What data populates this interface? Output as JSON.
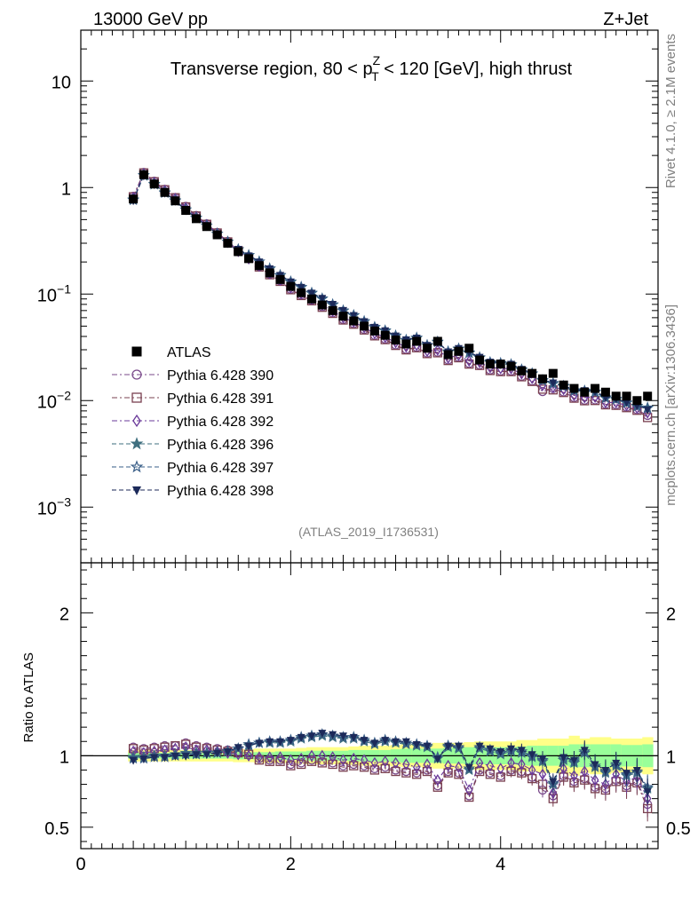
{
  "header": {
    "energy_label": "13000 GeV pp",
    "process_label": "Z+Jet",
    "rivet_label": "Rivet 4.1.0, ≥ 2.1M events",
    "mcplots_label": "mcplots.cern.ch [arXiv:1306.3436]",
    "analysis_label": "(ATLAS_2019_I1736531)"
  },
  "chart_data": [
    {
      "type": "scatter",
      "title": "Transverse region, 80 < p_T^Z < 120 [GeV], high thrust",
      "title_parts": {
        "pre": "Transverse region, 80 < p",
        "sup": "Z",
        "sub": "T",
        "post": " < 120 [GeV], high thrust"
      },
      "yscale": "log",
      "ylim": [
        0.0003,
        30
      ],
      "xlim": [
        0,
        5.5
      ],
      "ytick_labels": [
        {
          "value": 10,
          "label": "10"
        },
        {
          "value": 1,
          "label": "1"
        },
        {
          "value": 0.1,
          "base": "10",
          "exp": "−1"
        },
        {
          "value": 0.01,
          "base": "10",
          "exp": "−2"
        },
        {
          "value": 0.001,
          "base": "10",
          "exp": "−3"
        }
      ],
      "x": [
        0.5,
        0.6,
        0.7,
        0.8,
        0.9,
        1.0,
        1.1,
        1.2,
        1.3,
        1.4,
        1.5,
        1.6,
        1.7,
        1.8,
        1.9,
        2.0,
        2.1,
        2.2,
        2.3,
        2.4,
        2.5,
        2.6,
        2.7,
        2.8,
        2.9,
        3.0,
        3.1,
        3.2,
        3.3,
        3.4,
        3.5,
        3.6,
        3.7,
        3.8,
        3.9,
        4.0,
        4.1,
        4.2,
        4.3,
        4.4,
        4.5,
        4.6,
        4.7,
        4.8,
        4.9,
        5.0,
        5.1,
        5.2,
        5.3,
        5.4
      ],
      "series": [
        {
          "name": "ATLAS",
          "marker": "square-filled",
          "color": "#000000",
          "values": [
            0.78,
            1.32,
            1.08,
            0.9,
            0.75,
            0.61,
            0.51,
            0.43,
            0.36,
            0.3,
            0.25,
            0.215,
            0.185,
            0.158,
            0.137,
            0.118,
            0.103,
            0.09,
            0.079,
            0.07,
            0.062,
            0.056,
            0.05,
            0.045,
            0.041,
            0.037,
            0.034,
            0.036,
            0.031,
            0.036,
            0.027,
            0.029,
            0.031,
            0.024,
            0.022,
            0.022,
            0.021,
            0.019,
            0.018,
            0.016,
            0.018,
            0.014,
            0.013,
            0.012,
            0.013,
            0.012,
            0.011,
            0.011,
            0.01,
            0.011
          ]
        },
        {
          "name": "Pythia 6.428 390",
          "marker": "circle-open",
          "color": "#7a4a8a"
        },
        {
          "name": "Pythia 6.428 391",
          "marker": "square-open",
          "color": "#7a4050"
        },
        {
          "name": "Pythia 6.428 392",
          "marker": "diamond-open",
          "color": "#6a3a9a"
        },
        {
          "name": "Pythia 6.428 396",
          "marker": "star-filled",
          "color": "#3f6f7f"
        },
        {
          "name": "Pythia 6.428 397",
          "marker": "star-open",
          "color": "#3a5f88"
        },
        {
          "name": "Pythia 6.428 398",
          "marker": "triangle-down-filled",
          "color": "#1c2a5a"
        }
      ]
    },
    {
      "type": "scatter",
      "ylabel": "Ratio to ATLAS",
      "ylim": [
        0.35,
        2.35
      ],
      "xlim": [
        0,
        5.5
      ],
      "xtick_labels": [
        "0",
        "2",
        "4"
      ],
      "ytick_labels_left": [
        "0.5",
        "1",
        "2"
      ],
      "ytick_labels_right": [
        "0.5",
        "1",
        "2"
      ],
      "reference_line": 1,
      "band_yellow_halfwidth": [
        0.04,
        0.04,
        0.04,
        0.04,
        0.04,
        0.04,
        0.04,
        0.04,
        0.04,
        0.04,
        0.045,
        0.045,
        0.05,
        0.05,
        0.05,
        0.05,
        0.055,
        0.06,
        0.06,
        0.06,
        0.06,
        0.065,
        0.07,
        0.07,
        0.07,
        0.075,
        0.08,
        0.08,
        0.08,
        0.09,
        0.09,
        0.09,
        0.095,
        0.1,
        0.1,
        0.1,
        0.1,
        0.11,
        0.11,
        0.12,
        0.12,
        0.12,
        0.14,
        0.12,
        0.13,
        0.13,
        0.12,
        0.12,
        0.12,
        0.13
      ],
      "band_green_halfwidth": [
        0.02,
        0.02,
        0.02,
        0.02,
        0.02,
        0.02,
        0.02,
        0.02,
        0.02,
        0.02,
        0.025,
        0.025,
        0.025,
        0.025,
        0.03,
        0.03,
        0.03,
        0.035,
        0.035,
        0.035,
        0.035,
        0.04,
        0.04,
        0.04,
        0.04,
        0.045,
        0.05,
        0.05,
        0.05,
        0.05,
        0.055,
        0.055,
        0.06,
        0.06,
        0.06,
        0.06,
        0.06,
        0.065,
        0.07,
        0.07,
        0.07,
        0.07,
        0.08,
        0.08,
        0.08,
        0.08,
        0.08,
        0.075,
        0.075,
        0.08
      ],
      "series": [
        {
          "name": "Pythia 6.428 390",
          "values": [
            1.06,
            1.05,
            1.06,
            1.07,
            1.07,
            1.09,
            1.07,
            1.06,
            1.05,
            1.04,
            1.03,
            1.02,
            0.98,
            0.97,
            0.97,
            0.94,
            0.95,
            0.97,
            0.96,
            0.95,
            0.93,
            0.94,
            0.93,
            0.91,
            0.92,
            0.9,
            0.89,
            0.88,
            0.9,
            0.79,
            0.89,
            0.88,
            0.72,
            0.9,
            0.88,
            0.86,
            0.9,
            0.89,
            0.85,
            0.76,
            0.72,
            0.86,
            0.82,
            0.84,
            0.78,
            0.77,
            0.83,
            0.79,
            0.82,
            0.66
          ]
        },
        {
          "name": "Pythia 6.428 391",
          "values": [
            1.05,
            1.04,
            1.05,
            1.06,
            1.07,
            1.08,
            1.06,
            1.05,
            1.04,
            1.03,
            1.02,
            1.01,
            0.97,
            0.96,
            0.96,
            0.93,
            0.94,
            0.96,
            0.95,
            0.94,
            0.92,
            0.93,
            0.92,
            0.9,
            0.91,
            0.89,
            0.88,
            0.87,
            0.89,
            0.78,
            0.88,
            0.87,
            0.71,
            0.89,
            0.87,
            0.85,
            0.89,
            0.88,
            0.84,
            0.8,
            0.7,
            0.85,
            0.81,
            0.83,
            0.77,
            0.76,
            0.82,
            0.78,
            0.81,
            0.63
          ]
        },
        {
          "name": "Pythia 6.428 392",
          "values": [
            1.03,
            1.02,
            1.03,
            1.04,
            1.05,
            1.06,
            1.04,
            1.04,
            1.03,
            1.02,
            1.01,
            1.0,
            0.99,
            0.99,
            0.99,
            0.97,
            0.98,
            1.0,
            1.0,
            0.99,
            0.97,
            0.98,
            0.97,
            0.95,
            0.96,
            0.95,
            0.94,
            0.92,
            0.94,
            0.83,
            0.93,
            0.92,
            0.76,
            0.95,
            0.93,
            0.91,
            0.95,
            0.94,
            0.9,
            0.87,
            0.74,
            0.91,
            0.86,
            0.89,
            0.83,
            0.8,
            0.87,
            0.82,
            0.85,
            0.7
          ]
        },
        {
          "name": "Pythia 6.428 396",
          "values": [
            0.99,
            0.99,
            1.0,
            1.0,
            1.01,
            1.02,
            1.02,
            1.02,
            1.02,
            1.03,
            1.05,
            1.07,
            1.09,
            1.09,
            1.09,
            1.1,
            1.12,
            1.13,
            1.14,
            1.13,
            1.12,
            1.12,
            1.1,
            1.08,
            1.1,
            1.09,
            1.08,
            1.07,
            1.06,
            0.98,
            1.06,
            1.05,
            0.9,
            1.05,
            1.03,
            1.01,
            1.03,
            1.02,
            0.99,
            0.96,
            0.8,
            0.97,
            0.95,
            1.02,
            0.92,
            0.88,
            0.93,
            0.86,
            0.88,
            0.77
          ]
        },
        {
          "name": "Pythia 6.428 397",
          "values": [
            0.98,
            0.98,
            0.99,
            0.99,
            1.0,
            1.01,
            1.01,
            1.02,
            1.02,
            1.03,
            1.05,
            1.08,
            1.09,
            1.1,
            1.1,
            1.11,
            1.13,
            1.14,
            1.15,
            1.14,
            1.13,
            1.13,
            1.11,
            1.09,
            1.11,
            1.1,
            1.09,
            1.08,
            1.07,
            0.99,
            1.07,
            1.06,
            0.91,
            1.06,
            1.04,
            1.02,
            1.04,
            1.03,
            1.0,
            0.97,
            0.81,
            0.98,
            0.96,
            1.03,
            0.93,
            0.89,
            0.94,
            0.87,
            0.89,
            0.78
          ]
        },
        {
          "name": "Pythia 6.428 398",
          "values": [
            0.97,
            0.98,
            0.99,
            0.99,
            1.0,
            1.0,
            1.01,
            1.01,
            1.02,
            1.03,
            1.06,
            1.07,
            1.09,
            1.1,
            1.1,
            1.11,
            1.13,
            1.14,
            1.16,
            1.15,
            1.14,
            1.13,
            1.11,
            1.09,
            1.11,
            1.1,
            1.1,
            1.08,
            1.07,
            0.98,
            1.07,
            1.07,
            0.92,
            1.07,
            1.05,
            1.03,
            1.05,
            1.04,
            1.01,
            0.98,
            0.82,
            0.99,
            0.97,
            1.04,
            0.94,
            0.9,
            0.95,
            0.88,
            0.9,
            0.75
          ]
        }
      ]
    }
  ],
  "colors": {
    "band_yellow": "#ffff88",
    "band_green": "#99ff99",
    "data_color": "#000000"
  }
}
